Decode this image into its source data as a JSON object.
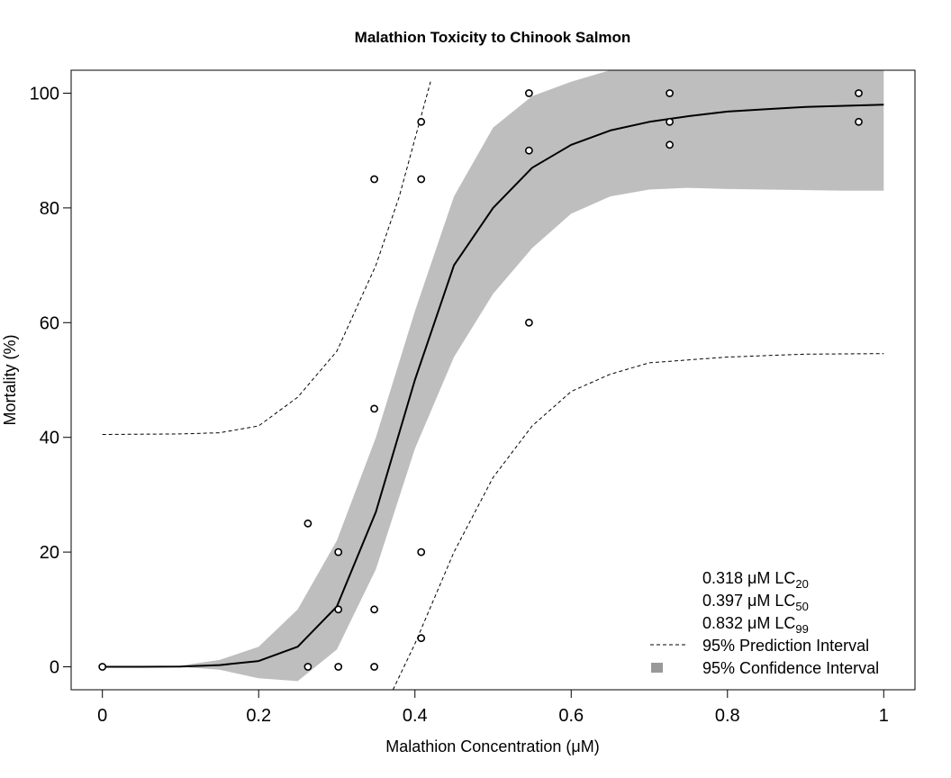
{
  "chart_data": {
    "type": "scatter",
    "title": "Malathion Toxicity to Chinook Salmon",
    "xlabel": "Malathion Concentration (μM)",
    "ylabel": "Mortality (%)",
    "xlim": [
      -0.04,
      1.04
    ],
    "ylim": [
      -4,
      104
    ],
    "xticks": [
      0,
      0.2,
      0.4,
      0.6,
      0.8,
      1
    ],
    "xtick_labels": [
      "0",
      "0.2",
      "0.4",
      "0.6",
      "0.8",
      "1"
    ],
    "yticks": [
      0,
      20,
      40,
      60,
      80,
      100
    ],
    "ytick_labels": [
      "0",
      "20",
      "40",
      "60",
      "80",
      "100"
    ],
    "grid": false,
    "legend_position": "bottom-right",
    "series": [
      {
        "kind": "points",
        "points": [
          [
            0,
            0
          ],
          [
            0.263,
            25
          ],
          [
            0.263,
            0
          ],
          [
            0.302,
            20
          ],
          [
            0.302,
            10
          ],
          [
            0.302,
            0
          ],
          [
            0.348,
            85
          ],
          [
            0.348,
            45
          ],
          [
            0.348,
            10
          ],
          [
            0.348,
            0
          ],
          [
            0.408,
            95
          ],
          [
            0.408,
            85
          ],
          [
            0.408,
            20
          ],
          [
            0.408,
            5
          ],
          [
            0.546,
            100
          ],
          [
            0.546,
            90
          ],
          [
            0.546,
            60
          ],
          [
            0.726,
            100
          ],
          [
            0.726,
            95
          ],
          [
            0.726,
            91
          ],
          [
            0.968,
            100
          ],
          [
            0.968,
            95
          ]
        ]
      },
      {
        "kind": "fit",
        "x": [
          0,
          0.05,
          0.1,
          0.15,
          0.2,
          0.25,
          0.3,
          0.35,
          0.4,
          0.45,
          0.5,
          0.55,
          0.6,
          0.65,
          0.7,
          0.75,
          0.8,
          0.85,
          0.9,
          0.95,
          1.0
        ],
        "y": [
          0,
          0,
          0.05,
          0.3,
          1.0,
          3.5,
          10.5,
          27,
          50,
          70,
          80,
          87,
          91,
          93.5,
          95,
          96,
          96.8,
          97.2,
          97.6,
          97.8,
          98
        ]
      },
      {
        "kind": "confidence",
        "x": [
          0,
          0.05,
          0.1,
          0.15,
          0.2,
          0.25,
          0.3,
          0.35,
          0.4,
          0.45,
          0.5,
          0.55,
          0.6,
          0.65,
          0.7,
          0.75,
          0.8,
          0.85,
          0.9,
          0.95,
          1.0
        ],
        "lower": [
          0,
          0,
          0,
          -0.5,
          -2,
          -2.5,
          3,
          17,
          38,
          54,
          65,
          73,
          79,
          82,
          83.2,
          83.5,
          83.3,
          83.2,
          83.1,
          83,
          83
        ],
        "upper": [
          0,
          0.05,
          0.2,
          1.2,
          3.5,
          10,
          22,
          40,
          62,
          82,
          94,
          99.5,
          102,
          104,
          104,
          104,
          104,
          104,
          104,
          104,
          104
        ]
      },
      {
        "kind": "prediction-upper",
        "x": [
          0,
          0.1,
          0.15,
          0.2,
          0.25,
          0.3,
          0.35,
          0.38,
          0.4,
          0.42
        ],
        "y": [
          40.5,
          40.6,
          40.8,
          42,
          47,
          55,
          70,
          82,
          92,
          102
        ]
      },
      {
        "kind": "prediction-lower",
        "x": [
          0.372,
          0.4,
          0.45,
          0.5,
          0.55,
          0.6,
          0.65,
          0.7,
          0.8,
          0.9,
          1.0
        ],
        "y": [
          -4,
          4,
          20,
          33,
          42,
          48,
          51,
          53,
          54,
          54.5,
          54.6
        ]
      }
    ],
    "annotations": {
      "lc20": {
        "value": "0.318 μM LC",
        "sub": "20"
      },
      "lc50": {
        "value": "0.397 μM LC",
        "sub": "50"
      },
      "lc99": {
        "value": "0.832 μM LC",
        "sub": "99"
      }
    },
    "legend": {
      "prediction": "95% Prediction Interval",
      "confidence": "95% Confidence Interval"
    },
    "colors": {
      "band": "#bebebe",
      "legend_box": "#999999",
      "line": "#000000"
    }
  }
}
